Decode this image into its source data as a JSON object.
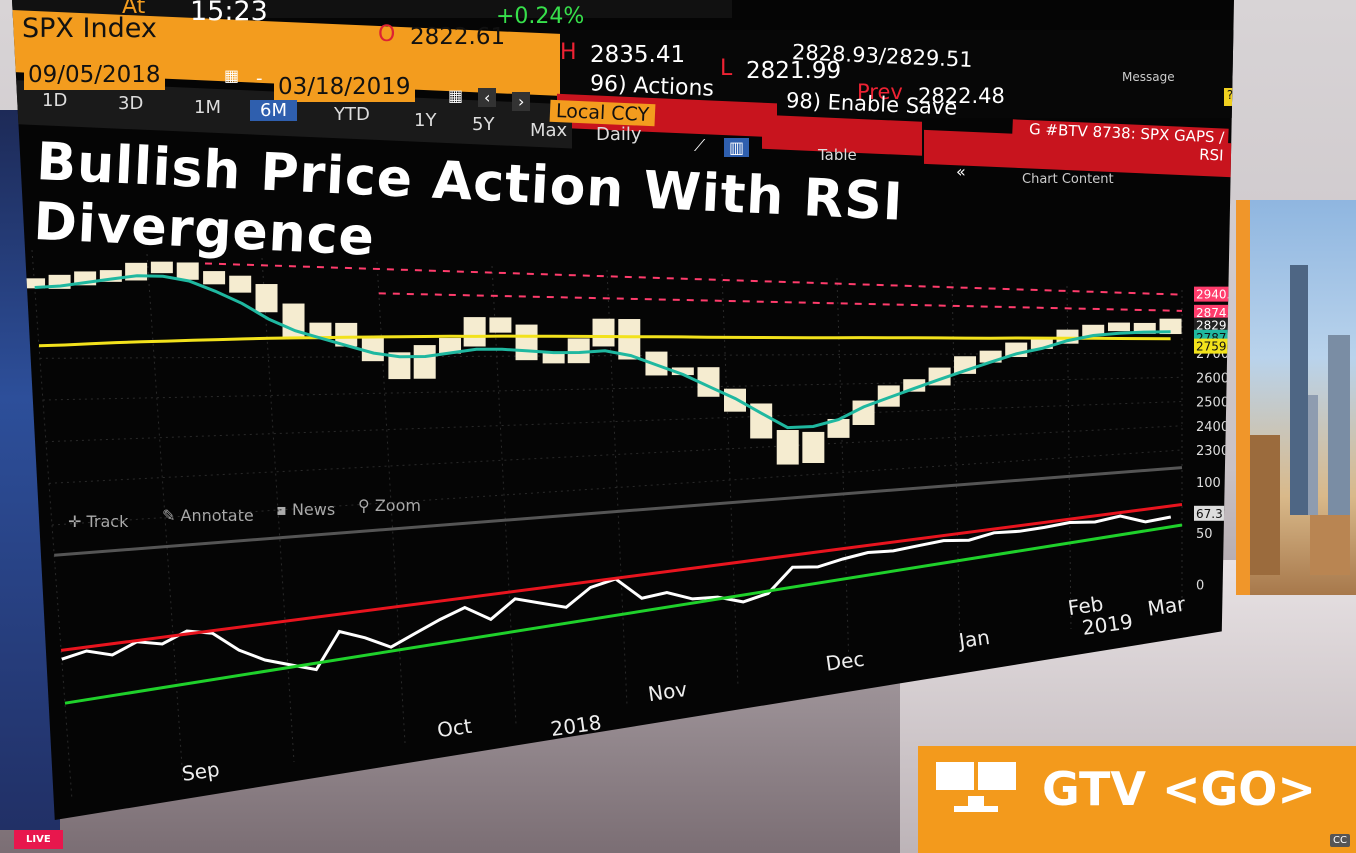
{
  "header": {
    "at_label": "At",
    "time": "15:23",
    "change_pct": "+0.24%",
    "ticker": "SPX Index",
    "open_label": "O",
    "open_value": "2822.61",
    "high_label": "H",
    "high_value": "2835.41",
    "low_label": "L",
    "low_value": "2821.99",
    "bid_ask": "2828.93/2829.51",
    "prev_label": "Prev",
    "prev_value": "2822.48",
    "message_label": "Message"
  },
  "dates": {
    "start": "09/05/2018",
    "separator": "-",
    "end": "03/18/2019"
  },
  "menus": {
    "actions": "96) Actions",
    "enable_save": "98) Enable Save",
    "currency": "Local CCY"
  },
  "ranges": [
    "1D",
    "3D",
    "1M",
    "6M",
    "YTD",
    "1Y",
    "5Y",
    "Max"
  ],
  "active_range": "6M",
  "frequency": "Daily",
  "table_label": "Table",
  "chart_content_label": "Chart Content",
  "banner": "G #BTV 8738: SPX GAPS / RSI",
  "chart_title": "Bullish Price Action With RSI Divergence",
  "tools": [
    "Track",
    "Annotate",
    "News",
    "Zoom"
  ],
  "icons": {
    "calendar": "calendar-icon",
    "nav_prev": "chevron-left-icon",
    "nav_next": "chevron-right-icon",
    "line_chart": "line-chart-icon",
    "bar_chart": "bar-chart-icon",
    "expand": "chevron-double-left-icon",
    "monitor": "monitor-icon"
  },
  "colors": {
    "bloomberg_orange": "#f39c1e",
    "bloomberg_red": "#c8141e",
    "price": "#f5ecd0",
    "moving_average": "#1fb8a0",
    "yellow_line": "#f2e21c",
    "gap_line": "#ff3c6c",
    "rsi": "#ffffff",
    "rsi_upper_trend": "#e8141e",
    "rsi_lower_trend": "#1fd12b",
    "active_range": "#2f5fae"
  },
  "chart_data": {
    "type": "line",
    "price_axis": {
      "ticks": [
        2300,
        2400,
        2500,
        2600,
        2700
      ],
      "ylim": [
        2300,
        2960
      ]
    },
    "price_labels": [
      {
        "value": "2940.91",
        "color": "#ff3c6c"
      },
      {
        "value": "2874.00",
        "color": "#ff3c6c"
      },
      {
        "value": "2829.25",
        "color": "#ffffff"
      },
      {
        "value": "2787.51",
        "color": "#1fb8a0"
      },
      {
        "value": "2759.49",
        "color": "#f2e21c"
      }
    ],
    "rsi_axis": {
      "ticks": [
        0,
        50,
        100
      ],
      "ylim": [
        0,
        100
      ]
    },
    "rsi_label": "67.3162",
    "x_labels": [
      "Sep",
      "Oct",
      "2018",
      "Nov",
      "Dec",
      "Jan",
      "Feb",
      "2019",
      "Mar"
    ],
    "series": [
      {
        "values": [
          2880,
          2890,
          2900,
          2905,
          2925,
          2930,
          2910,
          2900,
          2880,
          2830,
          2760,
          2780,
          2740,
          2700,
          2650,
          2720,
          2740,
          2800,
          2780,
          2700,
          2690,
          2740,
          2800,
          2700,
          2650,
          2650,
          2580,
          2530,
          2440,
          2350,
          2430,
          2470,
          2530,
          2580,
          2600,
          2640,
          2680,
          2700,
          2730,
          2750,
          2780,
          2800,
          2810,
          2790,
          2829
        ]
      },
      {
        "values": [
          2870,
          2875,
          2885,
          2895,
          2905,
          2905,
          2895,
          2870,
          2840,
          2800,
          2770,
          2750,
          2730,
          2710,
          2700,
          2700,
          2710,
          2720,
          2720,
          2715,
          2710,
          2710,
          2715,
          2700,
          2670,
          2640,
          2600,
          2560,
          2510,
          2460,
          2460,
          2480,
          2520,
          2550,
          2580,
          2610,
          2640,
          2670,
          2700,
          2720,
          2750,
          2770,
          2780,
          2785,
          2787
        ]
      },
      {
        "values": [
          2730,
          2732,
          2735,
          2738,
          2740,
          2742,
          2744,
          2746,
          2748,
          2750,
          2751,
          2752,
          2753,
          2754,
          2755,
          2756,
          2757,
          2757,
          2758,
          2758,
          2758,
          2758,
          2758,
          2758,
          2758,
          2758,
          2757,
          2757,
          2757,
          2757,
          2757,
          2757,
          2758,
          2758,
          2758,
          2758,
          2758,
          2758,
          2759,
          2759,
          2759,
          2759,
          2759,
          2759,
          2759
        ]
      },
      {
        "values": [
          55,
          58,
          54,
          60,
          57,
          63,
          60,
          48,
          40,
          35,
          30,
          52,
          46,
          38,
          45,
          52,
          58,
          48,
          60,
          55,
          50,
          62,
          66,
          50,
          52,
          45,
          44,
          38,
          42,
          60,
          58,
          62,
          65,
          64,
          66,
          68,
          66,
          70,
          69,
          70,
          72,
          70,
          73,
          65,
          67
        ]
      }
    ]
  }
}
